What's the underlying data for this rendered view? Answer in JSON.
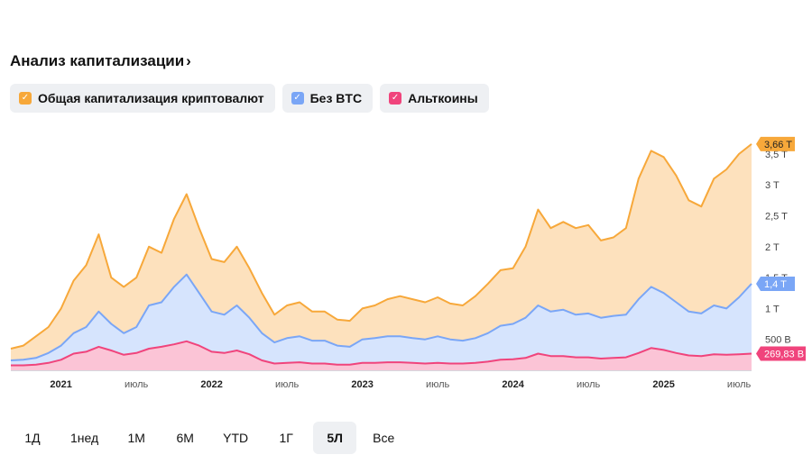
{
  "header": {
    "title": "Анализ капитализации",
    "chevron": "›"
  },
  "legend": [
    {
      "label": "Общая капитализация криптовалют",
      "color": "#f7a83a",
      "checked": true
    },
    {
      "label": "Без BTC",
      "color": "#7aa6f6",
      "checked": true
    },
    {
      "label": "Альткоины",
      "color": "#f0447c",
      "checked": true
    }
  ],
  "periods": [
    "1Д",
    "1нед",
    "1М",
    "6М",
    "YTD",
    "1Г",
    "5Л",
    "Все"
  ],
  "active_period": "5Л",
  "chart_data": {
    "type": "area",
    "x": [
      "2020-09",
      "2020-10",
      "2020-11",
      "2020-12",
      "2021-01",
      "2021-02",
      "2021-03",
      "2021-04",
      "2021-05",
      "2021-06",
      "2021-07",
      "2021-08",
      "2021-09",
      "2021-10",
      "2021-11",
      "2021-12",
      "2022-01",
      "2022-02",
      "2022-03",
      "2022-04",
      "2022-05",
      "2022-06",
      "2022-07",
      "2022-08",
      "2022-09",
      "2022-10",
      "2022-11",
      "2022-12",
      "2023-01",
      "2023-02",
      "2023-03",
      "2023-04",
      "2023-05",
      "2023-06",
      "2023-07",
      "2023-08",
      "2023-09",
      "2023-10",
      "2023-11",
      "2023-12",
      "2024-01",
      "2024-02",
      "2024-03",
      "2024-04",
      "2024-05",
      "2024-06",
      "2024-07",
      "2024-08",
      "2024-09",
      "2024-10",
      "2024-11",
      "2024-12",
      "2025-01",
      "2025-02",
      "2025-03",
      "2025-04",
      "2025-05",
      "2025-06",
      "2025-07",
      "2025-08"
    ],
    "series": [
      {
        "name": "Общая капитализация криптовалют",
        "color": "#f7a83a",
        "values": [
          0.35,
          0.4,
          0.55,
          0.7,
          1.0,
          1.45,
          1.7,
          2.2,
          1.5,
          1.35,
          1.5,
          2.0,
          1.9,
          2.45,
          2.85,
          2.3,
          1.8,
          1.75,
          2.0,
          1.65,
          1.25,
          0.9,
          1.05,
          1.1,
          0.95,
          0.95,
          0.82,
          0.8,
          1.0,
          1.05,
          1.15,
          1.2,
          1.15,
          1.1,
          1.18,
          1.08,
          1.05,
          1.2,
          1.4,
          1.62,
          1.65,
          2.0,
          2.6,
          2.3,
          2.4,
          2.3,
          2.35,
          2.1,
          2.15,
          2.3,
          3.1,
          3.55,
          3.45,
          3.15,
          2.75,
          2.65,
          3.1,
          3.25,
          3.5,
          3.66
        ]
      },
      {
        "name": "Без BTC",
        "color": "#7aa6f6",
        "values": [
          0.16,
          0.17,
          0.2,
          0.28,
          0.4,
          0.6,
          0.7,
          0.95,
          0.75,
          0.6,
          0.7,
          1.05,
          1.1,
          1.35,
          1.55,
          1.25,
          0.95,
          0.9,
          1.05,
          0.85,
          0.6,
          0.45,
          0.52,
          0.55,
          0.48,
          0.48,
          0.4,
          0.38,
          0.5,
          0.52,
          0.55,
          0.55,
          0.52,
          0.5,
          0.55,
          0.5,
          0.48,
          0.52,
          0.6,
          0.72,
          0.75,
          0.85,
          1.05,
          0.95,
          0.98,
          0.9,
          0.92,
          0.85,
          0.88,
          0.9,
          1.15,
          1.35,
          1.25,
          1.1,
          0.95,
          0.92,
          1.05,
          1.0,
          1.18,
          1.4
        ]
      },
      {
        "name": "Альткоины",
        "color": "#f0447c",
        "values": [
          0.08,
          0.08,
          0.09,
          0.12,
          0.17,
          0.27,
          0.3,
          0.38,
          0.32,
          0.25,
          0.28,
          0.35,
          0.38,
          0.42,
          0.47,
          0.4,
          0.3,
          0.28,
          0.32,
          0.26,
          0.16,
          0.11,
          0.12,
          0.13,
          0.11,
          0.11,
          0.09,
          0.09,
          0.12,
          0.12,
          0.13,
          0.13,
          0.12,
          0.11,
          0.12,
          0.11,
          0.11,
          0.12,
          0.14,
          0.17,
          0.18,
          0.2,
          0.27,
          0.23,
          0.23,
          0.21,
          0.21,
          0.19,
          0.2,
          0.21,
          0.28,
          0.36,
          0.33,
          0.28,
          0.24,
          0.23,
          0.26,
          0.25,
          0.26,
          0.27
        ]
      }
    ],
    "y_ticks": [
      {
        "value": 0.5,
        "label": "500 B"
      },
      {
        "value": 1.0,
        "label": "1 T"
      },
      {
        "value": 1.5,
        "label": "1,5 T"
      },
      {
        "value": 2.0,
        "label": "2 T"
      },
      {
        "value": 2.5,
        "label": "2,5 T"
      },
      {
        "value": 3.0,
        "label": "3 T"
      },
      {
        "value": 3.5,
        "label": "3,5 T"
      }
    ],
    "ylim": [
      0,
      3.95
    ],
    "x_ticks": [
      {
        "x": "2021-01",
        "label": "2021",
        "bold": true
      },
      {
        "x": "2021-07",
        "label": "июль",
        "bold": false
      },
      {
        "x": "2022-01",
        "label": "2022",
        "bold": true
      },
      {
        "x": "2022-07",
        "label": "июль",
        "bold": false
      },
      {
        "x": "2023-01",
        "label": "2023",
        "bold": true
      },
      {
        "x": "2023-07",
        "label": "июль",
        "bold": false
      },
      {
        "x": "2024-01",
        "label": "2024",
        "bold": true
      },
      {
        "x": "2024-07",
        "label": "июль",
        "bold": false
      },
      {
        "x": "2025-01",
        "label": "2025",
        "bold": true
      },
      {
        "x": "2025-07",
        "label": "июль",
        "bold": false
      }
    ],
    "last_labels": [
      {
        "series": "Общая капитализация криптовалют",
        "value": 3.66,
        "label": "3,66 T"
      },
      {
        "series": "Без BTC",
        "value": 1.4,
        "label": "1,4 T"
      },
      {
        "series": "Альткоины",
        "value": 0.26983,
        "label": "269,83 B"
      }
    ],
    "grid": false,
    "legend_position": "top-left"
  }
}
